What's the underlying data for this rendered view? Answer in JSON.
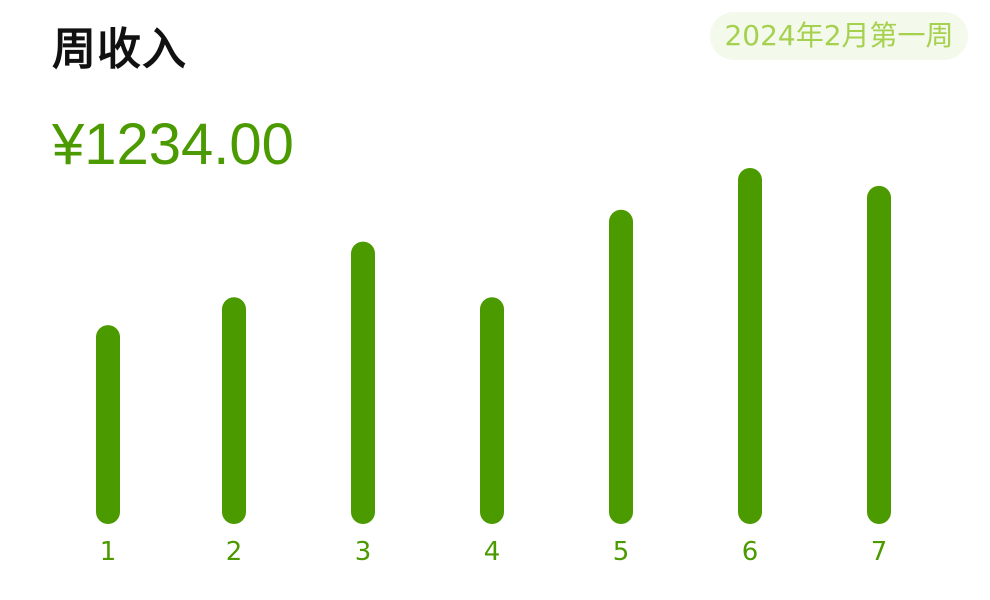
{
  "header": {
    "title": "周收入",
    "week_label": "2024年2月第一周",
    "amount": "¥1234.00"
  },
  "colors": {
    "bar": "#4b9a00",
    "amount": "#4b9a00",
    "badge_text": "#a5d14f",
    "badge_bg": "#f3f9eb"
  },
  "chart_data": {
    "type": "bar",
    "title": "",
    "xlabel": "",
    "ylabel": "",
    "categories": [
      "1",
      "2",
      "3",
      "4",
      "5",
      "6",
      "7"
    ],
    "values": [
      200,
      228,
      284,
      228,
      316,
      358,
      340
    ],
    "ylim": [
      0,
      360
    ],
    "grid": false,
    "legend": "none"
  }
}
